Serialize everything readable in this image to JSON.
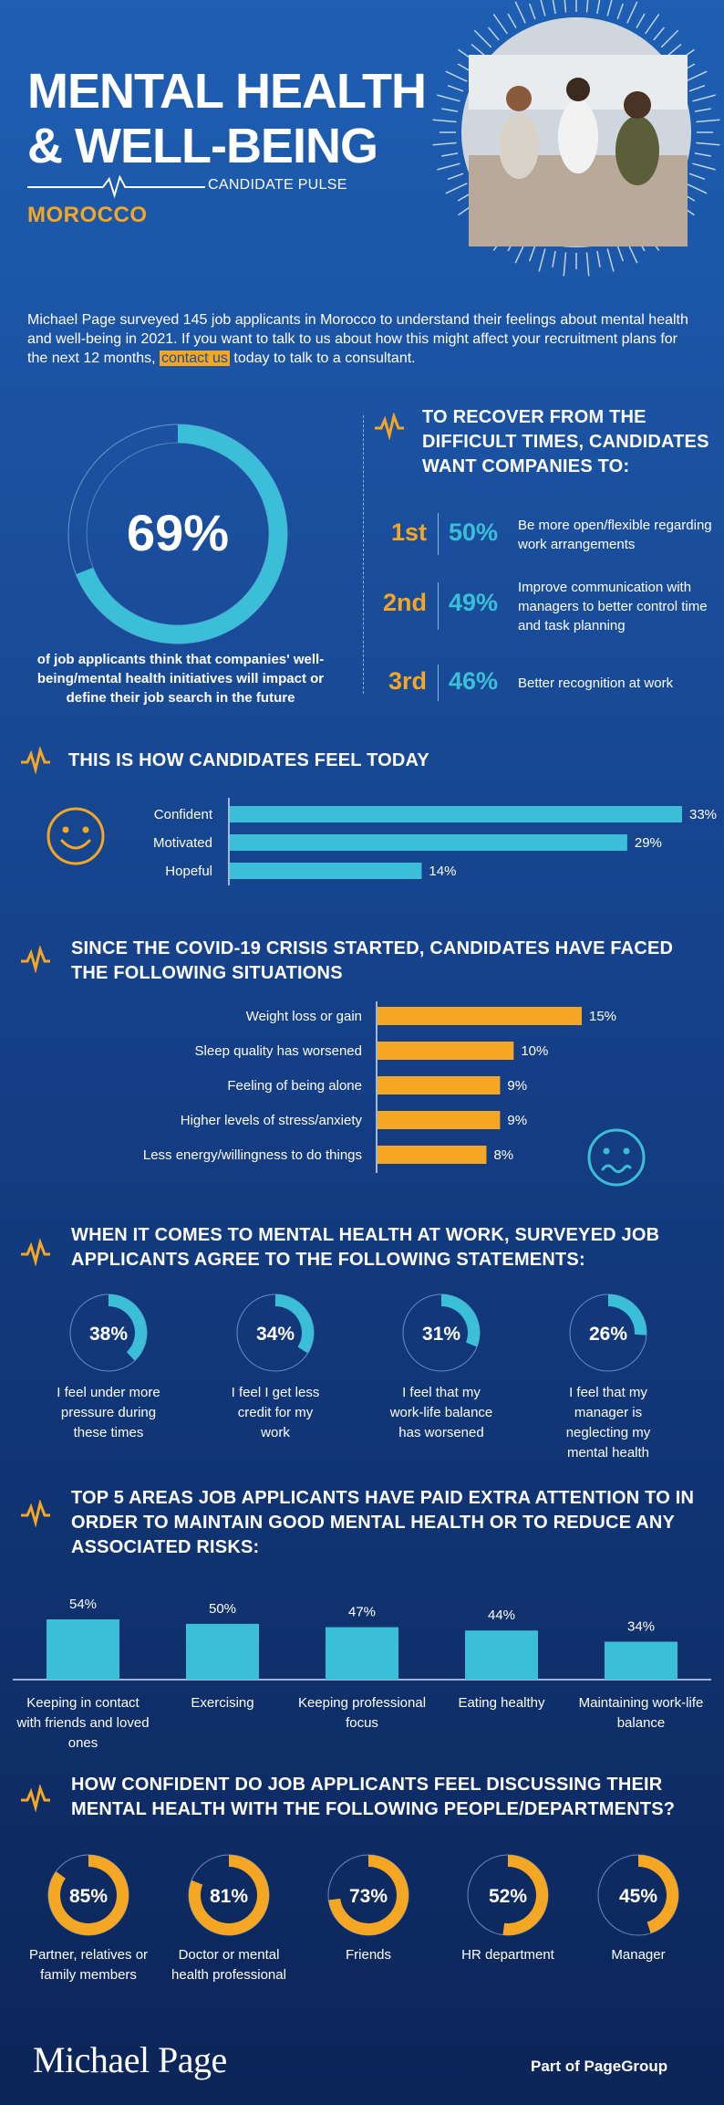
{
  "header": {
    "title_line1": "MENTAL HEALTH",
    "title_line2": "& WELL-BEING",
    "subtitle": "CANDIDATE PULSE",
    "country": "MOROCCO"
  },
  "intro": {
    "text_before": "Michael Page surveyed 145 job applicants in Morocco to understand their feelings about mental health and well-being in 2021. If you want to talk to us about how this might affect your recruitment plans for the next 12 months, ",
    "link": "contact us",
    "text_after": " today to talk to a consultant."
  },
  "impact": {
    "value": "69%",
    "fraction": 0.69,
    "caption": "of job applicants think that companies' well-being/mental health initiatives will impact or define their job search in the future"
  },
  "recover": {
    "heading": "TO RECOVER FROM THE DIFFICULT TIMES, CANDIDATES WANT COMPANIES TO:",
    "items": [
      {
        "rank": "1st",
        "pct": "50%",
        "text": "Be more open/flexible regarding work arrangements"
      },
      {
        "rank": "2nd",
        "pct": "49%",
        "text": "Improve communication with managers to better control time and task planning"
      },
      {
        "rank": "3rd",
        "pct": "46%",
        "text": "Better recognition at work"
      }
    ]
  },
  "feel": {
    "heading": "THIS IS HOW CANDIDATES FEEL TODAY"
  },
  "covid": {
    "heading_line1": "SINCE THE COVID-19 CRISIS STARTED, CANDIDATES HAVE FACED",
    "heading_line2": "THE FOLLOWING SITUATIONS"
  },
  "statements": {
    "heading_line1": "WHEN IT COMES TO MENTAL HEALTH AT WORK, SURVEYED JOB",
    "heading_line2": "APPLICANTS AGREE TO THE FOLLOWING STATEMENTS:"
  },
  "areas": {
    "heading_line1": "TOP 5 AREAS JOB APPLICANTS HAVE PAID EXTRA ATTENTION TO IN",
    "heading_line2": "ORDER TO MAINTAIN GOOD MENTAL HEALTH OR TO REDUCE ANY",
    "heading_line3": "ASSOCIATED RISKS:"
  },
  "confidence": {
    "heading_line1": "HOW CONFIDENT DO JOB APPLICANTS FEEL DISCUSSING THEIR",
    "heading_line2": "MENTAL HEALTH WITH THE FOLLOWING PEOPLE/DEPARTMENTS?"
  },
  "footer": {
    "brand": "Michael Page",
    "group": "Part of PageGroup"
  },
  "colors": {
    "accent": "#f5a623",
    "cyan": "#3bbfd8",
    "bg_top": "#1e5fb3",
    "bg_bottom": "#0b2558"
  },
  "chart_data": [
    {
      "type": "bar",
      "orientation": "horizontal",
      "title": "THIS IS HOW CANDIDATES FEEL TODAY",
      "categories": [
        "Confident",
        "Motivated",
        "Hopeful"
      ],
      "values": [
        33,
        29,
        14
      ],
      "labels": [
        "33%",
        "29%",
        "14%"
      ]
    },
    {
      "type": "bar",
      "orientation": "horizontal",
      "title": "SINCE THE COVID-19 CRISIS STARTED, CANDIDATES HAVE FACED THE FOLLOWING SITUATIONS",
      "categories": [
        "Weight loss or gain",
        "Sleep quality has worsened",
        "Feeling of being alone",
        "Higher levels of stress/anxiety",
        "Less energy/willingness to do things"
      ],
      "values": [
        15,
        10,
        9,
        9,
        8
      ],
      "labels": [
        "15%",
        "10%",
        "9%",
        "9%",
        "8%"
      ]
    },
    {
      "type": "pie",
      "title": "WHEN IT COMES TO MENTAL HEALTH AT WORK, SURVEYED JOB APPLICANTS AGREE TO THE FOLLOWING STATEMENTS:",
      "categories": [
        "I feel under more pressure during these times",
        "I feel I get less credit for my work",
        "I feel that my work-life balance has worsened",
        "I feel that my manager is neglecting my mental health"
      ],
      "values": [
        38,
        34,
        31,
        26
      ],
      "labels": [
        "38%",
        "34%",
        "31%",
        "26%"
      ]
    },
    {
      "type": "bar",
      "title": "TOP 5 AREAS JOB APPLICANTS HAVE PAID EXTRA ATTENTION TO IN ORDER TO MAINTAIN GOOD MENTAL HEALTH OR TO REDUCE ANY ASSOCIATED RISKS:",
      "categories": [
        "Keeping in contact with friends and loved ones",
        "Exercising",
        "Keeping professional focus",
        "Eating healthy",
        "Maintaining work-life balance"
      ],
      "values": [
        54,
        50,
        47,
        44,
        34
      ],
      "labels": [
        "54%",
        "50%",
        "47%",
        "44%",
        "34%"
      ]
    },
    {
      "type": "pie",
      "title": "HOW CONFIDENT DO JOB APPLICANTS FEEL DISCUSSING THEIR MENTAL HEALTH WITH THE FOLLOWING PEOPLE/DEPARTMENTS?",
      "categories": [
        "Partner, relatives or family members",
        "Doctor or mental health professional",
        "Friends",
        "HR department",
        "Manager"
      ],
      "values": [
        85,
        81,
        73,
        52,
        45
      ],
      "labels": [
        "85%",
        "81%",
        "73%",
        "52%",
        "45%"
      ]
    }
  ]
}
